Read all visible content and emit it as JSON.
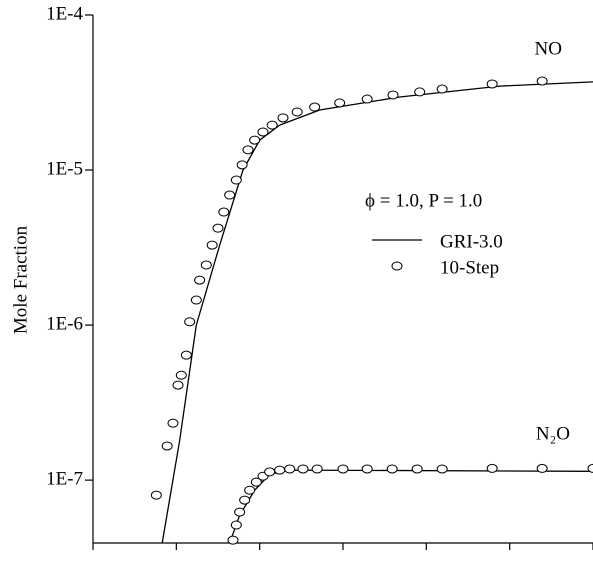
{
  "chart_data": {
    "type": "line",
    "y_label": "Mole Fraction",
    "legend_title": "ϕ = 1.0, P = 1.0",
    "annotations": [
      "NO",
      "N₂O"
    ],
    "log_y": true,
    "xlim": [
      0,
      6
    ],
    "xticks": [
      0,
      1,
      2,
      3,
      4,
      5,
      6
    ],
    "ylim": [
      3.93e-08,
      0.0001
    ],
    "yticks": [
      {
        "value": 1e-07,
        "label": "1E-7"
      },
      {
        "value": 1e-06,
        "label": "1E-6"
      },
      {
        "value": 1e-05,
        "label": "1E-5"
      },
      {
        "value": 0.0001,
        "label": "1E-4"
      }
    ],
    "series": [
      {
        "name": "GRI-3.0",
        "style": "line",
        "color": "#000000",
        "curves": [
          {
            "x": [
              0.83,
              1.04,
              1.24,
              1.52,
              1.8,
              2.0,
              2.24,
              2.72,
              3.68,
              4.88,
              6.0
            ],
            "values": [
              3.93e-08,
              1.81e-07,
              1e-06,
              3.28e-06,
              1e-05,
              1.56e-05,
              1.95e-05,
              2.44e-05,
              2.96e-05,
              3.48e-05,
              3.7e-05
            ]
          },
          {
            "x": [
              1.64,
              1.76,
              1.94,
              2.12,
              2.36,
              6.0
            ],
            "values": [
              3.93e-08,
              5.94e-08,
              8.61e-08,
              1.09e-07,
              1.16e-07,
              1.14e-07
            ]
          }
        ]
      },
      {
        "name": "10-Step",
        "style": "circle",
        "color": "#000000",
        "curves": [
          {
            "x": [
              0.76,
              0.89,
              0.96,
              1.02,
              1.06,
              1.12,
              1.16,
              1.24,
              1.28,
              1.36,
              1.43,
              1.5,
              1.57,
              1.64,
              1.72,
              1.79,
              1.86,
              1.94,
              2.04,
              2.15,
              2.28,
              2.45,
              2.66,
              2.96,
              3.29,
              3.6,
              3.92,
              4.19,
              4.79,
              5.39
            ],
            "values": [
              8e-08,
              1.66e-07,
              2.33e-07,
              4.1e-07,
              4.75e-07,
              6.4e-07,
              1.05e-06,
              1.45e-06,
              1.95e-06,
              2.44e-06,
              3.28e-06,
              4.22e-06,
              5.36e-06,
              6.9e-06,
              8.62e-06,
              1.08e-05,
              1.35e-05,
              1.56e-05,
              1.76e-05,
              1.95e-05,
              2.17e-05,
              2.37e-05,
              2.55e-05,
              2.71e-05,
              2.87e-05,
              3.05e-05,
              3.19e-05,
              3.33e-05,
              3.59e-05,
              3.75e-05
            ]
          },
          {
            "x": [
              1.68,
              1.72,
              1.76,
              1.82,
              1.88,
              1.96,
              2.04,
              2.12,
              2.24,
              2.36,
              2.52,
              2.69,
              3.0,
              3.29,
              3.59,
              3.89,
              4.19,
              4.79,
              5.39,
              6.0
            ],
            "values": [
              4.1e-08,
              5.13e-08,
              6.22e-08,
              7.43e-08,
              8.61e-08,
              9.71e-08,
              1.06e-07,
              1.13e-07,
              1.16e-07,
              1.18e-07,
              1.18e-07,
              1.18e-07,
              1.18e-07,
              1.18e-07,
              1.18e-07,
              1.18e-07,
              1.18e-07,
              1.19e-07,
              1.19e-07,
              1.19e-07
            ]
          }
        ]
      }
    ]
  }
}
